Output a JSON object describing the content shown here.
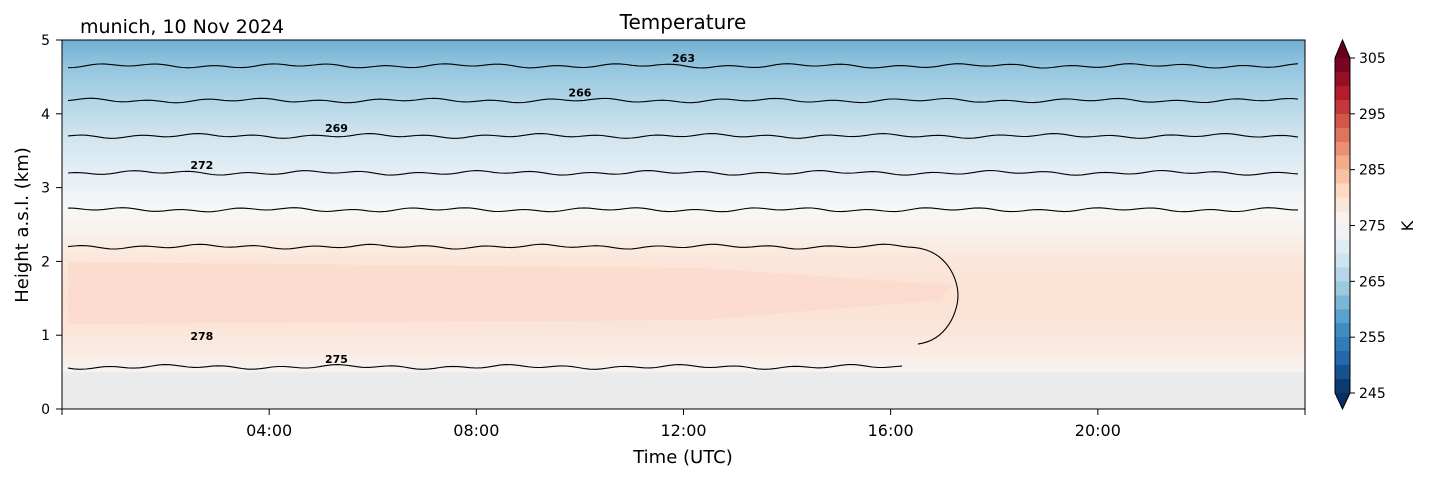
{
  "chart_data": {
    "type": "heatmap",
    "title": "Temperature",
    "subtitle": "munich, 10 Nov 2024",
    "xlabel": "Time (UTC)",
    "ylabel": "Height a.s.l. (km)",
    "x_unit": "hours UTC",
    "xlim": [
      0,
      24
    ],
    "ylim": [
      0,
      5
    ],
    "xticks": [
      {
        "value": 4,
        "label": "04:00"
      },
      {
        "value": 8,
        "label": "08:00"
      },
      {
        "value": 12,
        "label": "12:00"
      },
      {
        "value": 16,
        "label": "16:00"
      },
      {
        "value": 20,
        "label": "20:00"
      }
    ],
    "yticks": [
      {
        "value": 0,
        "label": "0"
      },
      {
        "value": 1,
        "label": "1"
      },
      {
        "value": 2,
        "label": "2"
      },
      {
        "value": 3,
        "label": "3"
      },
      {
        "value": 4,
        "label": "4"
      },
      {
        "value": 5,
        "label": "5"
      }
    ],
    "no_data_below_km": 0.5,
    "colorbar": {
      "label": "K",
      "min": 245,
      "max": 305,
      "ticks": [
        "245",
        "255",
        "265",
        "275",
        "285",
        "295",
        "305"
      ],
      "colormap": "RdBu_r"
    },
    "surface_field": [
      {
        "height_km": 0.5,
        "temperature_K": 276.0
      },
      {
        "height_km": 1.0,
        "temperature_K": 278.6
      },
      {
        "height_km": 1.5,
        "temperature_K": 279.4
      },
      {
        "height_km": 2.0,
        "temperature_K": 278.6
      },
      {
        "height_km": 2.3,
        "temperature_K": 277.0
      },
      {
        "height_km": 2.7,
        "temperature_K": 275.0
      },
      {
        "height_km": 3.2,
        "temperature_K": 272.0
      },
      {
        "height_km": 3.7,
        "temperature_K": 269.0
      },
      {
        "height_km": 4.2,
        "temperature_K": 266.0
      },
      {
        "height_km": 4.65,
        "temperature_K": 263.0
      },
      {
        "height_km": 5.0,
        "temperature_K": 260.5
      }
    ],
    "contours": [
      {
        "level": 263,
        "label": "263",
        "height_km": 4.65
      },
      {
        "level": 266,
        "label": "266",
        "height_km": 4.18
      },
      {
        "level": 269,
        "label": "269",
        "height_km": 3.7
      },
      {
        "level": 272,
        "label": "272",
        "height_km": 3.2
      },
      {
        "level": 275,
        "label": "",
        "height_km": 2.7
      },
      {
        "level": 278,
        "label": "278",
        "closed_region": {
          "x_end": 17.3,
          "bottom_km": 0.88,
          "top_km": 2.2
        }
      },
      {
        "level": 275,
        "label": "275",
        "height_km": 0.57,
        "x_end": 16.3
      }
    ]
  }
}
